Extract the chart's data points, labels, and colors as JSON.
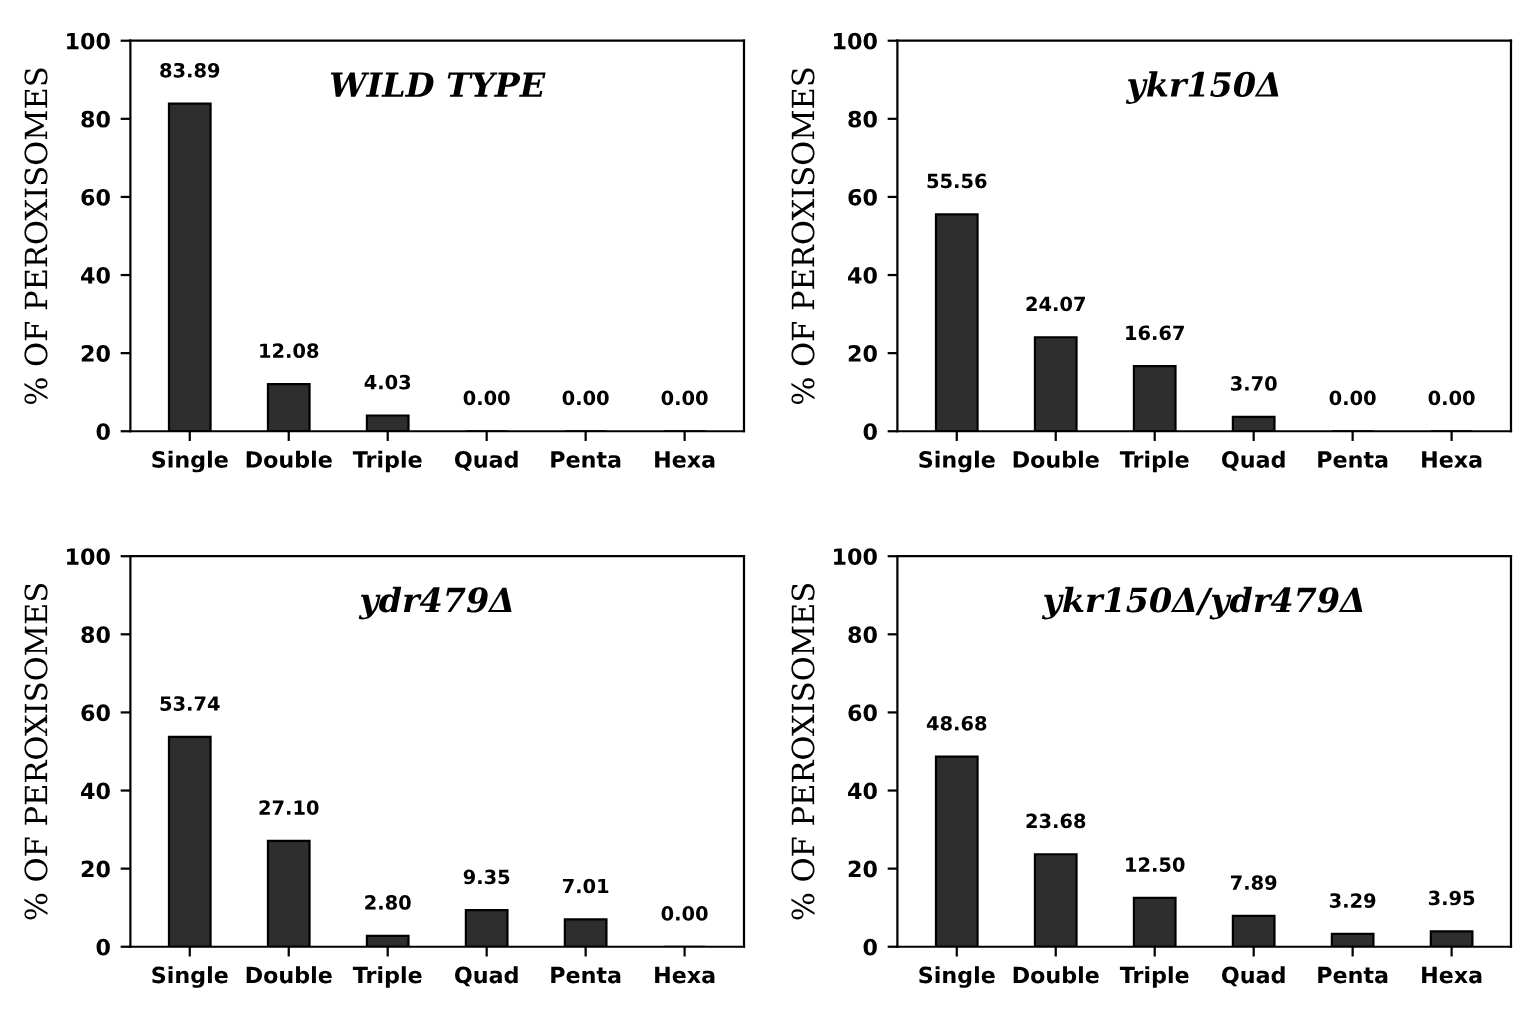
{
  "chart_data": [
    {
      "type": "bar",
      "title": "WILD TYPE",
      "ylabel": "% OF PEROXISOMES",
      "categories": [
        "Single",
        "Double",
        "Triple",
        "Quad",
        "Penta",
        "Hexa"
      ],
      "color": "#2e2e2e",
      "values": [
        83.89,
        12.08,
        4.03,
        0,
        0,
        0
      ],
      "value_labels": [
        "83.89",
        "12.08",
        "4.03",
        "0.00",
        "0.00",
        "0.00"
      ],
      "ylim": [
        0,
        100
      ],
      "yticks": [
        0,
        20,
        40,
        60,
        80,
        100
      ]
    },
    {
      "type": "bar",
      "title": "ykr150Δ",
      "ylabel": "% OF PEROXISOMES",
      "categories": [
        "Single",
        "Double",
        "Triple",
        "Quad",
        "Penta",
        "Hexa"
      ],
      "color": "#2e2e2e",
      "values": [
        55.56,
        24.07,
        16.67,
        3.7,
        0,
        0
      ],
      "value_labels": [
        "55.56",
        "24.07",
        "16.67",
        "3.70",
        "0.00",
        "0.00"
      ],
      "ylim": [
        0,
        100
      ],
      "yticks": [
        0,
        20,
        40,
        60,
        80,
        100
      ]
    },
    {
      "type": "bar",
      "title": "ydr479Δ",
      "ylabel": "% OF PEROXISOMES",
      "categories": [
        "Single",
        "Double",
        "Triple",
        "Quad",
        "Penta",
        "Hexa"
      ],
      "color": "#2e2e2e",
      "values": [
        53.74,
        27.1,
        2.8,
        9.35,
        7.01,
        0
      ],
      "value_labels": [
        "53.74",
        "27.10",
        "2.80",
        "9.35",
        "7.01",
        "0.00"
      ],
      "ylim": [
        0,
        100
      ],
      "yticks": [
        0,
        20,
        40,
        60,
        80,
        100
      ]
    },
    {
      "type": "bar",
      "title": "ykr150Δ/ydr479Δ",
      "ylabel": "% OF PEROXISOMES",
      "categories": [
        "Single",
        "Double",
        "Triple",
        "Quad",
        "Penta",
        "Hexa"
      ],
      "color": "#2e2e2e",
      "values": [
        48.68,
        23.68,
        12.5,
        7.89,
        3.29,
        3.95
      ],
      "value_labels": [
        "48.68",
        "23.68",
        "12.50",
        "7.89",
        "3.29",
        "3.95"
      ],
      "ylim": [
        0,
        100
      ],
      "yticks": [
        0,
        20,
        40,
        60,
        80,
        100
      ]
    }
  ]
}
